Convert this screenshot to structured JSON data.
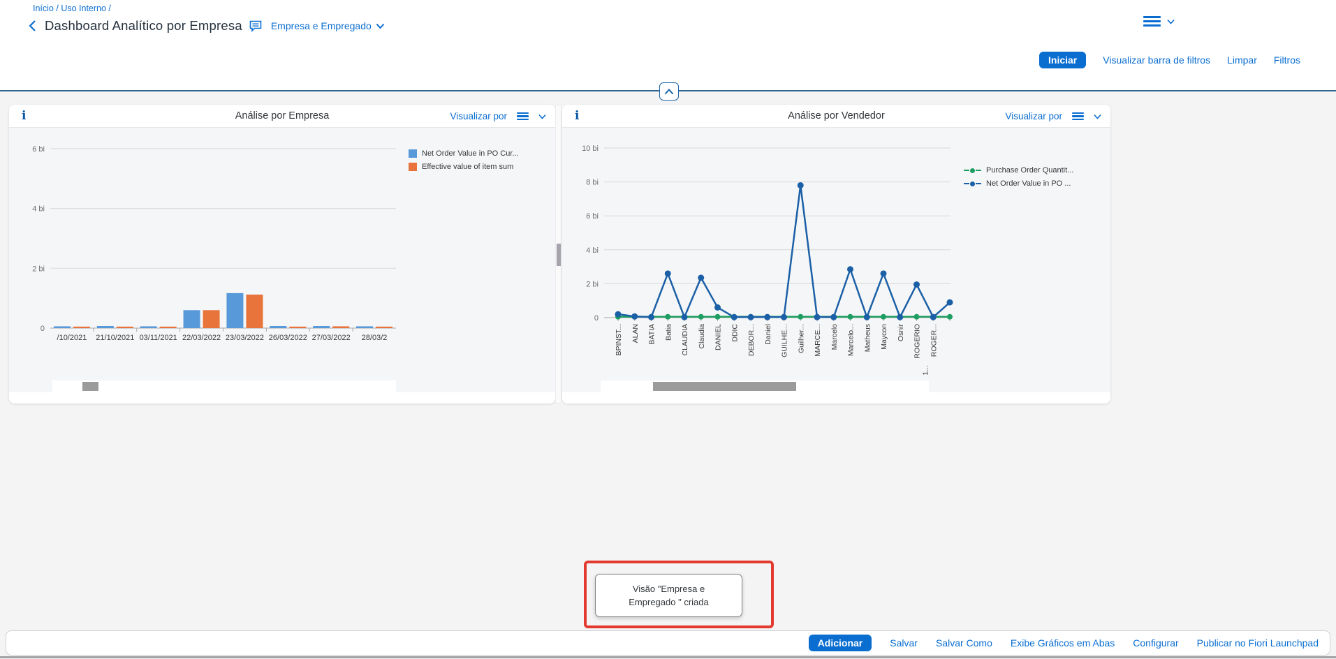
{
  "colors": {
    "accent": "#0a6ed1",
    "highlight_red": "#e23a2e"
  },
  "icons": {
    "info": "i"
  },
  "breadcrumb": {
    "inicio": "Início",
    "sep": " / ",
    "uso_interno": "Uso Interno",
    "trail": " /"
  },
  "header": {
    "title": "Dashboard Analítico por Empresa",
    "view_selector": "Empresa e Empregado",
    "actions": {
      "iniciar": "Iniciar",
      "visualizar_barra": "Visualizar barra de filtros",
      "limpar": "Limpar",
      "filtros": "Filtros"
    }
  },
  "panels": {
    "visualizar_por": "Visualizar por"
  },
  "chart_data": [
    {
      "type": "bar",
      "title": "Análise por Empresa",
      "unit": "bi",
      "categories": [
        "/10/2021",
        "21/10/2021",
        "03/11/2021",
        "22/03/2022",
        "23/03/2022",
        "26/03/2022",
        "27/03/2022",
        "28/03/2"
      ],
      "series": [
        {
          "name": "Net Order Value in PO Cur...",
          "color": "#5899DA",
          "values": [
            0.06,
            0.07,
            0.06,
            0.6,
            1.17,
            0.07,
            0.07,
            0.06
          ]
        },
        {
          "name": "Effective value of item sum",
          "color": "#E8743B",
          "values": [
            0.05,
            0.05,
            0.05,
            0.6,
            1.12,
            0.05,
            0.06,
            0.05
          ]
        }
      ],
      "yticks": [
        {
          "value": 0,
          "label": "0"
        },
        {
          "value": 2,
          "label": "2 bi"
        },
        {
          "value": 4,
          "label": "4 bi"
        },
        {
          "value": 6,
          "label": "6 bi"
        }
      ],
      "ylim": [
        0,
        6.9
      ],
      "grid": true,
      "legend_position": "right-top"
    },
    {
      "type": "line",
      "title": "Análise por Vendedor",
      "unit": "bi",
      "categories": [
        "BPINST...",
        "ALAN",
        "BATIA",
        "Batia",
        "CLAUDIA",
        "Claudia",
        "DANIEL",
        "DDIC",
        "DEBOR...",
        "Daniel",
        "GUILHE...",
        "Guilher...",
        "MARCE...",
        "Marcelo",
        "Marcelo...",
        "Matheus",
        "Maycon",
        "Osnir",
        "ROGERIO\n1...",
        "ROGER...",
        ""
      ],
      "series": [
        {
          "name": "Purchase Order Quantit...",
          "color": "#1E9E62",
          "values": [
            0.05,
            0.05,
            0.05,
            0.05,
            0.05,
            0.05,
            0.05,
            0.05,
            0.05,
            0.05,
            0.05,
            0.05,
            0.05,
            0.05,
            0.05,
            0.05,
            0.05,
            0.05,
            0.05,
            0.05,
            0.05
          ]
        },
        {
          "name": "Net Order Value in PO ...",
          "color": "#1B60A7",
          "values": [
            0.2,
            0.07,
            0.03,
            2.6,
            0.03,
            2.35,
            0.6,
            0.03,
            0.03,
            0.03,
            0.03,
            7.8,
            0.03,
            0.03,
            2.85,
            0.03,
            2.6,
            0.03,
            1.95,
            0.03,
            0.9
          ]
        }
      ],
      "yticks": [
        {
          "value": 0,
          "label": "0"
        },
        {
          "value": 2,
          "label": "2 bi"
        },
        {
          "value": 4,
          "label": "4 bi"
        },
        {
          "value": 6,
          "label": "6 bi"
        },
        {
          "value": 8,
          "label": "8 bi"
        },
        {
          "value": 10,
          "label": "10 bi"
        }
      ],
      "ylim": [
        0,
        10.7
      ],
      "grid": true,
      "legend_position": "right-top"
    }
  ],
  "toast": {
    "line1": "Visão \"Empresa e",
    "line2": "Empregado \" criada"
  },
  "footer": {
    "adicionar": "Adicionar",
    "salvar": "Salvar",
    "salvar_como": "Salvar Como",
    "exibe_graficos": "Exibe Gráficos em Abas",
    "configurar": "Configurar",
    "publicar": "Publicar no Fiori Launchpad"
  }
}
